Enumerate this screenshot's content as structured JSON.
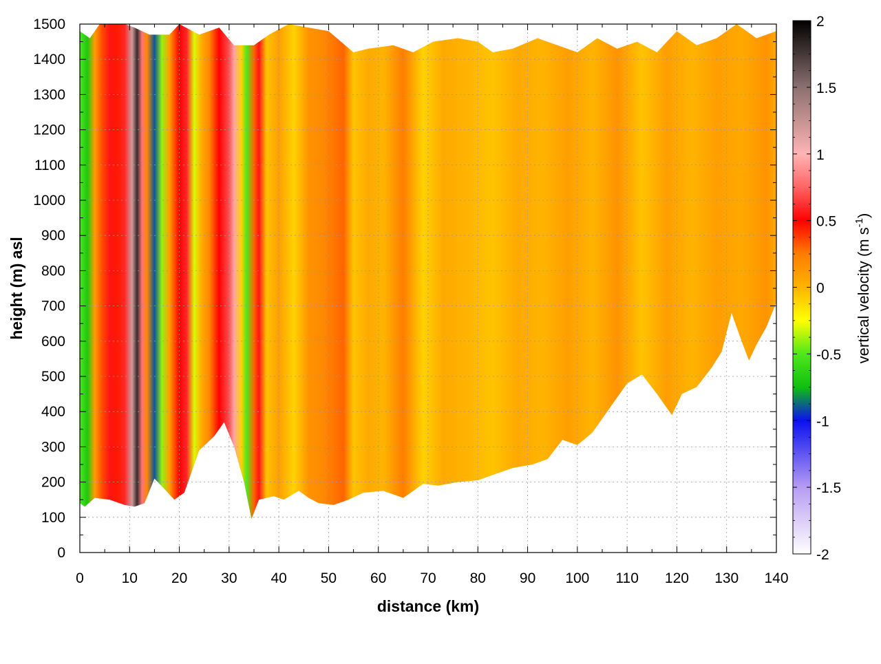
{
  "chart_data": {
    "type": "heatmap",
    "title": "",
    "xlabel": "distance (km)",
    "ylabel": "height (m) asl",
    "xlim": [
      0,
      140
    ],
    "ylim": [
      0,
      1500
    ],
    "x_ticks": [
      "0",
      "10",
      "20",
      "30",
      "40",
      "50",
      "60",
      "70",
      "80",
      "90",
      "100",
      "110",
      "120",
      "130",
      "140"
    ],
    "y_ticks": [
      "0",
      "100",
      "200",
      "300",
      "400",
      "500",
      "600",
      "700",
      "800",
      "900",
      "1000",
      "1100",
      "1200",
      "1300",
      "1400",
      "1500"
    ],
    "grid": true,
    "colorbar": {
      "label_main": "vertical velocity (m s",
      "label_sup": "-1",
      "label_end": ")",
      "range": [
        -2,
        2
      ],
      "ticks": [
        "2",
        "1.5",
        "1",
        "0.5",
        "0",
        "-0.5",
        "-1",
        "-1.5",
        "-2"
      ],
      "ramp": [
        {
          "v": -2.0,
          "c": "#ffffff"
        },
        {
          "v": -1.5,
          "c": "#b79cf2"
        },
        {
          "v": -1.0,
          "c": "#0a10f0"
        },
        {
          "v": -0.75,
          "c": "#0fc00f"
        },
        {
          "v": -0.5,
          "c": "#4fe81a"
        },
        {
          "v": -0.25,
          "c": "#ffff00"
        },
        {
          "v": 0.0,
          "c": "#ffb400"
        },
        {
          "v": 0.25,
          "c": "#ff7d00"
        },
        {
          "v": 0.5,
          "c": "#ff0000"
        },
        {
          "v": 0.75,
          "c": "#ff6464"
        },
        {
          "v": 1.0,
          "c": "#ffb4b4"
        },
        {
          "v": 1.5,
          "c": "#8c7070"
        },
        {
          "v": 2.0,
          "c": "#000000"
        }
      ]
    },
    "bottom_boundary": [
      [
        0,
        140
      ],
      [
        1,
        130
      ],
      [
        3,
        155
      ],
      [
        6,
        150
      ],
      [
        9,
        135
      ],
      [
        11,
        130
      ],
      [
        13,
        140
      ],
      [
        15,
        210
      ],
      [
        17,
        180
      ],
      [
        19,
        150
      ],
      [
        21,
        170
      ],
      [
        24,
        290
      ],
      [
        27,
        330
      ],
      [
        29,
        370
      ],
      [
        31,
        300
      ],
      [
        33,
        200
      ],
      [
        34.5,
        95
      ],
      [
        36,
        150
      ],
      [
        39,
        160
      ],
      [
        41,
        150
      ],
      [
        44,
        175
      ],
      [
        46,
        155
      ],
      [
        48,
        140
      ],
      [
        51,
        135
      ],
      [
        54,
        150
      ],
      [
        57,
        170
      ],
      [
        61,
        175
      ],
      [
        65,
        155
      ],
      [
        69,
        195
      ],
      [
        72,
        190
      ],
      [
        76,
        200
      ],
      [
        80,
        205
      ],
      [
        84,
        225
      ],
      [
        87,
        240
      ],
      [
        91,
        250
      ],
      [
        94,
        265
      ],
      [
        97,
        320
      ],
      [
        100,
        305
      ],
      [
        103,
        340
      ],
      [
        106,
        400
      ],
      [
        110,
        480
      ],
      [
        113,
        505
      ],
      [
        116,
        450
      ],
      [
        119,
        390
      ],
      [
        121,
        450
      ],
      [
        124,
        470
      ],
      [
        127,
        525
      ],
      [
        129,
        570
      ],
      [
        131,
        680
      ],
      [
        133,
        600
      ],
      [
        134.5,
        545
      ],
      [
        136,
        590
      ],
      [
        138,
        640
      ],
      [
        140,
        710
      ]
    ],
    "top_boundary": [
      [
        0,
        1480
      ],
      [
        2,
        1460
      ],
      [
        4,
        1500
      ],
      [
        9,
        1500
      ],
      [
        11,
        1490
      ],
      [
        14,
        1470
      ],
      [
        18,
        1470
      ],
      [
        20,
        1500
      ],
      [
        24,
        1470
      ],
      [
        28,
        1490
      ],
      [
        31,
        1440
      ],
      [
        35,
        1440
      ],
      [
        38,
        1470
      ],
      [
        42,
        1500
      ],
      [
        50,
        1480
      ],
      [
        55,
        1420
      ],
      [
        58,
        1430
      ],
      [
        63,
        1440
      ],
      [
        67,
        1420
      ],
      [
        71,
        1450
      ],
      [
        76,
        1460
      ],
      [
        80,
        1450
      ],
      [
        83,
        1420
      ],
      [
        87,
        1430
      ],
      [
        92,
        1460
      ],
      [
        96,
        1440
      ],
      [
        100,
        1420
      ],
      [
        104,
        1460
      ],
      [
        108,
        1430
      ],
      [
        112,
        1450
      ],
      [
        116,
        1420
      ],
      [
        120,
        1480
      ],
      [
        124,
        1440
      ],
      [
        128,
        1460
      ],
      [
        132,
        1500
      ],
      [
        136,
        1460
      ],
      [
        140,
        1480
      ]
    ],
    "columns": [
      {
        "x": 0,
        "v": -0.5
      },
      {
        "x": 1.5,
        "v": -0.7
      },
      {
        "x": 3,
        "v": 0.1
      },
      {
        "x": 4.5,
        "v": 0.35
      },
      {
        "x": 6,
        "v": 0.55
      },
      {
        "x": 7.5,
        "v": 0.45
      },
      {
        "x": 9,
        "v": 0.6
      },
      {
        "x": 10.5,
        "v": 1.2
      },
      {
        "x": 11.5,
        "v": 1.8
      },
      {
        "x": 12.5,
        "v": 0.8
      },
      {
        "x": 13.5,
        "v": 0.2
      },
      {
        "x": 15,
        "v": -0.9
      },
      {
        "x": 16.5,
        "v": -0.4
      },
      {
        "x": 18,
        "v": 0.1
      },
      {
        "x": 20,
        "v": 0.5
      },
      {
        "x": 21.5,
        "v": 0.6
      },
      {
        "x": 23,
        "v": -0.3
      },
      {
        "x": 24.5,
        "v": 0.05
      },
      {
        "x": 26,
        "v": 0.2
      },
      {
        "x": 28,
        "v": 0.5
      },
      {
        "x": 30,
        "v": 0.7
      },
      {
        "x": 31,
        "v": 0.95
      },
      {
        "x": 32.5,
        "v": -0.1
      },
      {
        "x": 33.5,
        "v": -0.5
      },
      {
        "x": 35,
        "v": 0.3
      },
      {
        "x": 36,
        "v": 0.55
      },
      {
        "x": 37.5,
        "v": -0.05
      },
      {
        "x": 40,
        "v": 0.1
      },
      {
        "x": 43,
        "v": -0.1
      },
      {
        "x": 46,
        "v": 0.15
      },
      {
        "x": 49,
        "v": 0.2
      },
      {
        "x": 53,
        "v": 0.3
      },
      {
        "x": 55,
        "v": -0.05
      },
      {
        "x": 58,
        "v": 0.05
      },
      {
        "x": 61,
        "v": 0.0
      },
      {
        "x": 65,
        "v": 0.25
      },
      {
        "x": 69,
        "v": -0.1
      },
      {
        "x": 73,
        "v": 0.05
      },
      {
        "x": 78,
        "v": 0.0
      },
      {
        "x": 83,
        "v": -0.05
      },
      {
        "x": 88,
        "v": 0.05
      },
      {
        "x": 93,
        "v": 0.0
      },
      {
        "x": 98,
        "v": 0.1
      },
      {
        "x": 103,
        "v": 0.0
      },
      {
        "x": 108,
        "v": 0.15
      },
      {
        "x": 113,
        "v": -0.05
      },
      {
        "x": 118,
        "v": 0.1
      },
      {
        "x": 123,
        "v": 0.0
      },
      {
        "x": 128,
        "v": 0.1
      },
      {
        "x": 133,
        "v": 0.05
      },
      {
        "x": 138,
        "v": 0.15
      },
      {
        "x": 140,
        "v": 0.05
      }
    ]
  }
}
